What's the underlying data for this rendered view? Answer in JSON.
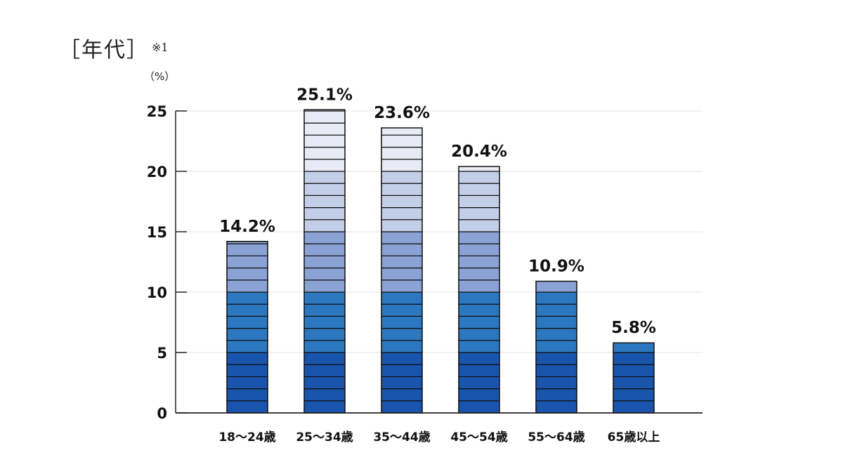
{
  "header": {
    "title": "［年代］",
    "note": "※1"
  },
  "chart_data": {
    "type": "bar",
    "title": "",
    "unit": "（%）",
    "xlabel": "",
    "ylabel": "",
    "categories": [
      "18～24歳",
      "25～34歳",
      "35～44歳",
      "45～54歳",
      "55～64歳",
      "65歳以上"
    ],
    "values": [
      14.2,
      25.1,
      23.6,
      20.4,
      10.9,
      5.8
    ],
    "data_labels": [
      "14.2%",
      "25.1%",
      "23.6%",
      "20.4%",
      "10.9%",
      "5.8%"
    ],
    "ylim": [
      0,
      25
    ],
    "yticks": [
      0,
      5,
      10,
      15,
      20,
      25
    ],
    "grid": true,
    "legend": "none",
    "segment_step": 1,
    "colors": {
      "band_0_5": "#1a55ad",
      "band_5_10": "#2c78c0",
      "band_10_15": "#8aa3d4",
      "band_15_20": "#c3cfe8",
      "band_20_25": "#e8ebf6",
      "segment_line": "#111111",
      "grid": "#e6e6e6",
      "axis": "#222222"
    }
  }
}
